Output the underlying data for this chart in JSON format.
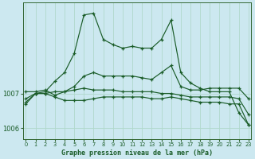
{
  "background_color": "#cce8f0",
  "grid_color": "#b0d8cc",
  "line_color": "#1a5c28",
  "title": "Graphe pression niveau de la mer (hPa)",
  "ylim": [
    1005.7,
    1009.6
  ],
  "yticks": [
    1006,
    1007
  ],
  "series": [
    [
      1006.85,
      1007.0,
      1007.0,
      1007.05,
      1007.05,
      1007.1,
      1007.15,
      1007.1,
      1007.1,
      1007.1,
      1007.05,
      1007.05,
      1007.05,
      1007.05,
      1007.0,
      1007.0,
      1006.95,
      1006.9,
      1006.9,
      1006.9,
      1006.9,
      1006.9,
      1006.85,
      1006.4
    ],
    [
      1006.75,
      1007.0,
      1007.05,
      1007.35,
      1007.6,
      1008.15,
      1009.25,
      1009.3,
      1008.55,
      1008.4,
      1008.3,
      1008.35,
      1008.3,
      1008.3,
      1008.55,
      1009.1,
      1007.6,
      1007.3,
      1007.15,
      1007.05,
      1007.05,
      1007.05,
      1006.45,
      1006.1
    ],
    [
      1007.05,
      1007.05,
      1007.1,
      1006.95,
      1007.05,
      1007.2,
      1007.5,
      1007.6,
      1007.5,
      1007.5,
      1007.5,
      1007.5,
      1007.45,
      1007.4,
      1007.6,
      1007.8,
      1007.2,
      1007.1,
      1007.1,
      1007.15,
      1007.15,
      1007.15,
      1007.15,
      1006.85
    ],
    [
      1006.7,
      1007.0,
      1007.0,
      1006.9,
      1006.8,
      1006.8,
      1006.8,
      1006.85,
      1006.9,
      1006.9,
      1006.9,
      1006.9,
      1006.9,
      1006.85,
      1006.85,
      1006.9,
      1006.85,
      1006.8,
      1006.75,
      1006.75,
      1006.75,
      1006.7,
      1006.7,
      1006.1
    ]
  ]
}
